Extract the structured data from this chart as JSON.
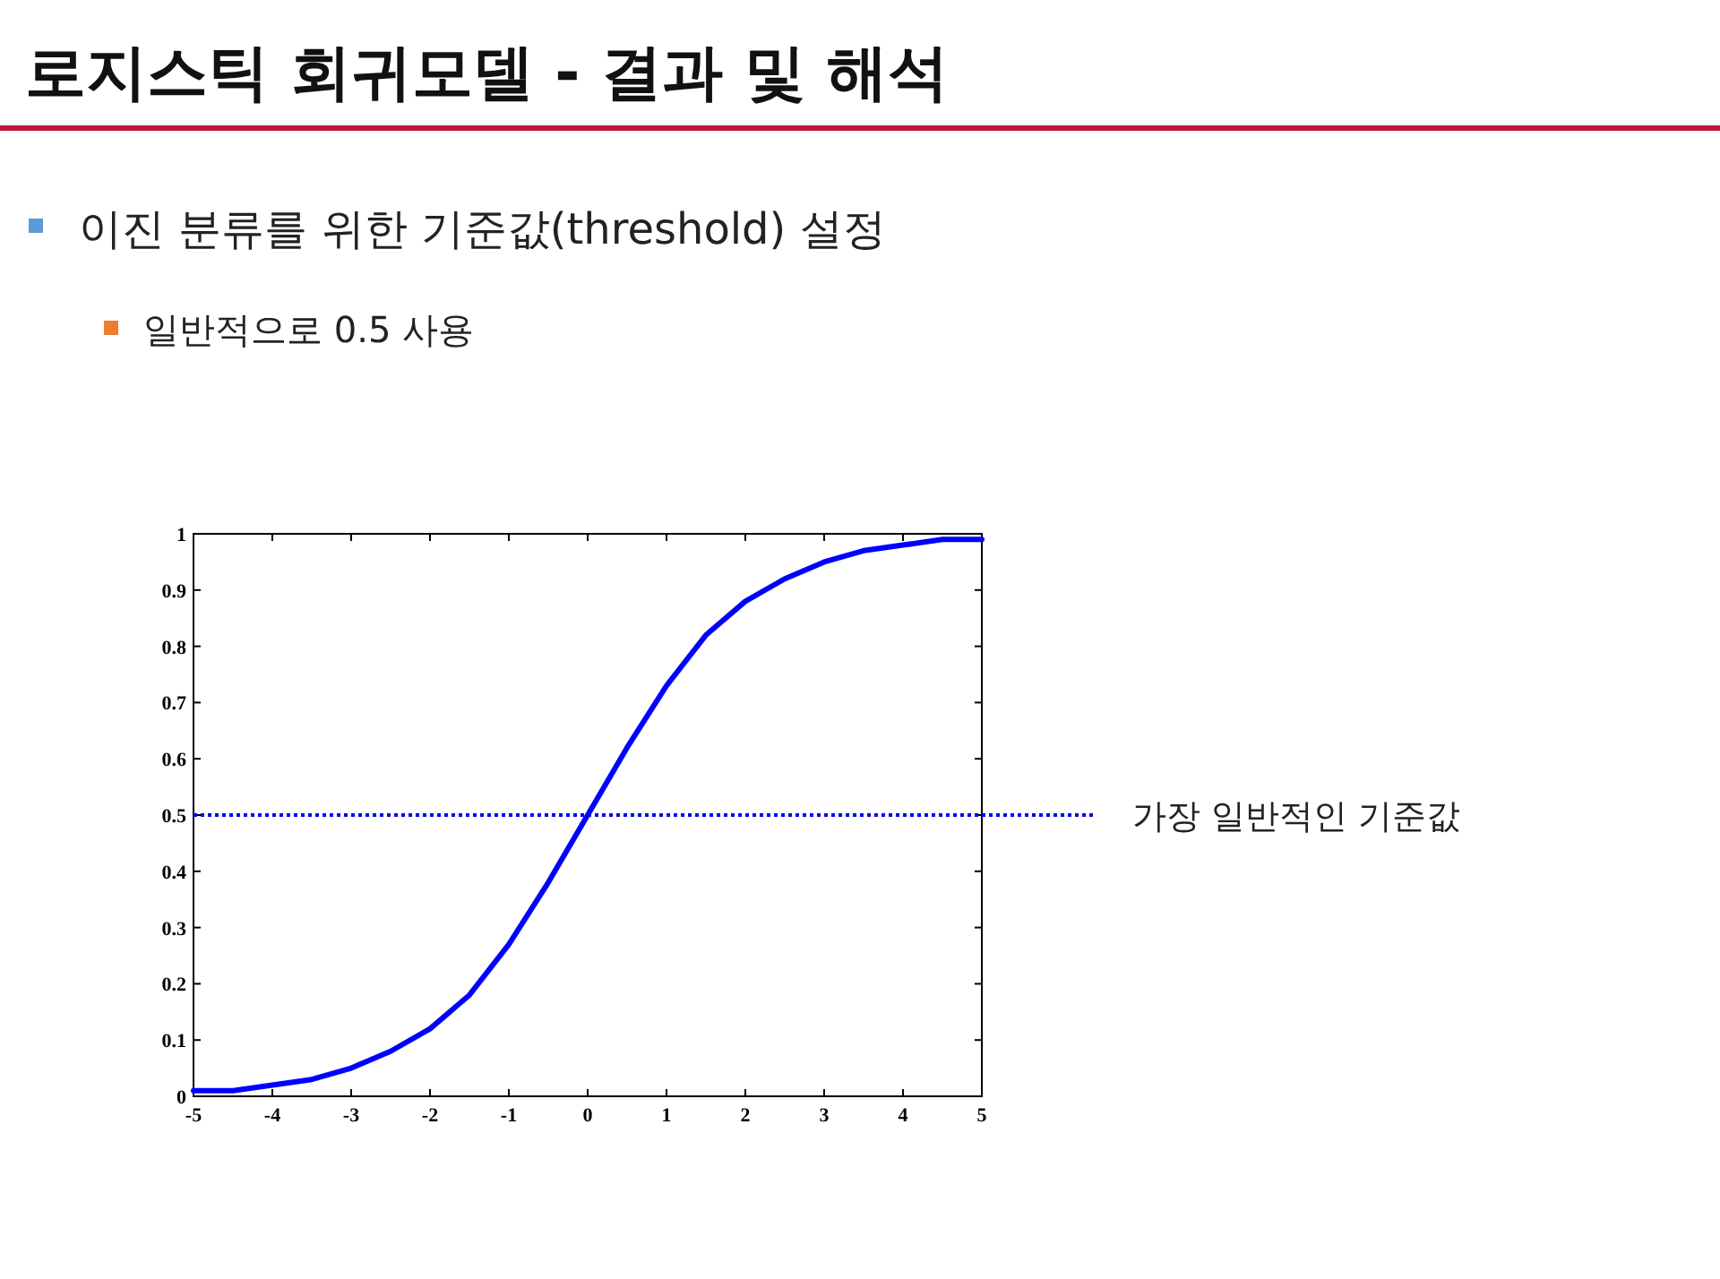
{
  "chart_data": {
    "type": "line",
    "title": "로지스틱 회귀모델 - 결과 및 해석",
    "annotations": [
      "이진 분류를 위한 기준값(threshold) 설정",
      "일반적으로 0.5 사용"
    ],
    "x": [
      -5,
      -4.5,
      -4,
      -3.5,
      -3,
      -2.5,
      -2,
      -1.5,
      -1,
      -0.5,
      0,
      0.5,
      1,
      1.5,
      2,
      2.5,
      3,
      3.5,
      4,
      4.5,
      5
    ],
    "series": [
      {
        "color": "#0000ff",
        "values": [
          0.01,
          0.01,
          0.02,
          0.03,
          0.05,
          0.08,
          0.12,
          0.18,
          0.27,
          0.38,
          0.5,
          0.62,
          0.73,
          0.82,
          0.88,
          0.92,
          0.95,
          0.97,
          0.98,
          0.99,
          0.99
        ]
      }
    ],
    "xlim": [
      -5,
      5
    ],
    "ylim": [
      0,
      1
    ],
    "xticks": [
      -5,
      -4,
      -3,
      -2,
      -1,
      0,
      1,
      2,
      3,
      4,
      5
    ],
    "yticks": [
      0,
      0.1,
      0.2,
      0.3,
      0.4,
      0.5,
      0.6,
      0.7,
      0.8,
      0.9,
      1
    ],
    "ref_lines": [
      {
        "axis": "y",
        "value": 0.5,
        "label": "가장 일반적인 기준값",
        "color": "#0000ff",
        "line_style": "dotted"
      }
    ]
  }
}
